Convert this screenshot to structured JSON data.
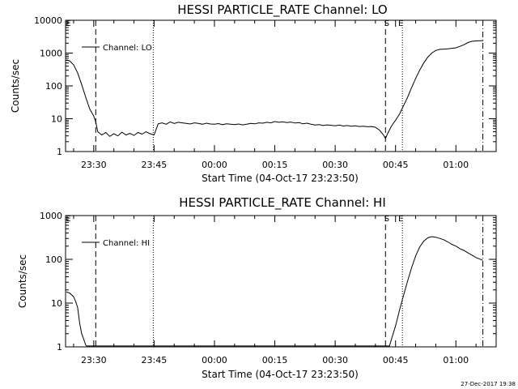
{
  "footer": {
    "date": "27-Dec-2017 19:38"
  },
  "chart_data": [
    {
      "type": "line",
      "title": "HESSI PARTICLE_RATE Channel: LO",
      "xlabel": "Start Time (04-Oct-17 23:23:50)",
      "ylabel": "Counts/sec",
      "yscale": "log",
      "ylim": [
        1,
        10000
      ],
      "xlim_minutes": [
        -7,
        100
      ],
      "x_ticks": [
        {
          "label": "23:30",
          "t": 0
        },
        {
          "label": "23:45",
          "t": 15
        },
        {
          "label": "00:00",
          "t": 30
        },
        {
          "label": "00:15",
          "t": 45
        },
        {
          "label": "00:30",
          "t": 60
        },
        {
          "label": "00:45",
          "t": 75
        },
        {
          "label": "01:00",
          "t": 90
        }
      ],
      "y_ticks": [
        {
          "label": "1",
          "v": 1
        },
        {
          "label": "10",
          "v": 10
        },
        {
          "label": "100",
          "v": 100
        },
        {
          "label": "1000",
          "v": 1000
        },
        {
          "label": "10000",
          "v": 10000
        }
      ],
      "legend": "Channel: LO",
      "markers": [
        {
          "label": "E",
          "t": -6.3
        },
        {
          "label": "S",
          "t": 72.8
        },
        {
          "label": "E",
          "t": 76.3
        }
      ],
      "vlines": [
        {
          "t": 0.5,
          "style": "dashed"
        },
        {
          "t": 14.8,
          "style": "dotted"
        },
        {
          "t": 72.5,
          "style": "dashed"
        },
        {
          "t": 76.7,
          "style": "dotted"
        },
        {
          "t": 96.7,
          "style": "dashdot"
        }
      ],
      "series": [
        {
          "points": [
            [
              -6.8,
              620
            ],
            [
              -6,
              580
            ],
            [
              -5,
              440
            ],
            [
              -4,
              250
            ],
            [
              -3,
              110
            ],
            [
              -2,
              45
            ],
            [
              -1,
              20
            ],
            [
              0,
              12
            ],
            [
              0.5,
              8
            ],
            [
              1,
              4
            ],
            [
              2,
              3.2
            ],
            [
              3,
              3.8
            ],
            [
              4,
              2.9
            ],
            [
              5,
              3.5
            ],
            [
              6,
              3
            ],
            [
              7,
              3.9
            ],
            [
              8,
              3.2
            ],
            [
              9,
              3.6
            ],
            [
              10,
              3.1
            ],
            [
              11,
              3.8
            ],
            [
              12,
              3.4
            ],
            [
              13,
              4
            ],
            [
              14,
              3.5
            ],
            [
              15,
              3.2
            ],
            [
              16,
              7
            ],
            [
              17,
              7.5
            ],
            [
              18,
              6.8
            ],
            [
              19,
              8
            ],
            [
              20,
              7.2
            ],
            [
              21,
              7.8
            ],
            [
              22,
              7.5
            ],
            [
              23,
              7.2
            ],
            [
              24,
              6.9
            ],
            [
              25,
              7.5
            ],
            [
              26,
              7.2
            ],
            [
              27,
              6.8
            ],
            [
              28,
              7.3
            ],
            [
              29,
              6.9
            ],
            [
              30,
              6.8
            ],
            [
              31,
              7.1
            ],
            [
              32,
              6.6
            ],
            [
              33,
              7
            ],
            [
              34,
              6.8
            ],
            [
              35,
              6.6
            ],
            [
              36,
              6.9
            ],
            [
              37,
              6.5
            ],
            [
              38,
              6.8
            ],
            [
              39,
              7.2
            ],
            [
              40,
              7
            ],
            [
              41,
              7.5
            ],
            [
              42,
              7.3
            ],
            [
              43,
              7.8
            ],
            [
              44,
              7.5
            ],
            [
              45,
              8.2
            ],
            [
              46,
              7.8
            ],
            [
              47,
              8
            ],
            [
              48,
              7.6
            ],
            [
              49,
              7.9
            ],
            [
              50,
              7.4
            ],
            [
              51,
              7.6
            ],
            [
              52,
              7
            ],
            [
              53,
              7.3
            ],
            [
              54,
              6.8
            ],
            [
              55,
              6.4
            ],
            [
              56,
              6.6
            ],
            [
              57,
              6.2
            ],
            [
              58,
              6.5
            ],
            [
              59,
              6.3
            ],
            [
              60,
              6.1
            ],
            [
              61,
              6.4
            ],
            [
              62,
              6
            ],
            [
              63,
              6.2
            ],
            [
              64,
              5.9
            ],
            [
              65,
              6.1
            ],
            [
              66,
              5.8
            ],
            [
              67,
              5.9
            ],
            [
              68,
              5.7
            ],
            [
              69,
              5.8
            ],
            [
              70,
              5.5
            ],
            [
              71,
              4.5
            ],
            [
              72,
              3.2
            ],
            [
              72.5,
              2.5
            ],
            [
              73,
              3.5
            ],
            [
              74,
              6
            ],
            [
              75,
              9
            ],
            [
              76,
              14
            ],
            [
              77,
              25
            ],
            [
              78,
              45
            ],
            [
              79,
              90
            ],
            [
              80,
              170
            ],
            [
              81,
              300
            ],
            [
              82,
              500
            ],
            [
              83,
              750
            ],
            [
              84,
              1000
            ],
            [
              85,
              1200
            ],
            [
              86,
              1300
            ],
            [
              87,
              1320
            ],
            [
              88,
              1350
            ],
            [
              89,
              1400
            ],
            [
              90,
              1450
            ],
            [
              91,
              1600
            ],
            [
              92,
              1800
            ],
            [
              93,
              2100
            ],
            [
              94,
              2300
            ],
            [
              95,
              2350
            ],
            [
              96.7,
              2400
            ]
          ]
        }
      ]
    },
    {
      "type": "line",
      "title": "HESSI PARTICLE_RATE Channel: HI",
      "xlabel": "Start Time (04-Oct-17 23:23:50)",
      "ylabel": "Counts/sec",
      "yscale": "log",
      "ylim": [
        1,
        1000
      ],
      "xlim_minutes": [
        -7,
        100
      ],
      "x_ticks": [
        {
          "label": "23:30",
          "t": 0
        },
        {
          "label": "23:45",
          "t": 15
        },
        {
          "label": "00:00",
          "t": 30
        },
        {
          "label": "00:15",
          "t": 45
        },
        {
          "label": "00:30",
          "t": 60
        },
        {
          "label": "00:45",
          "t": 75
        },
        {
          "label": "01:00",
          "t": 90
        }
      ],
      "y_ticks": [
        {
          "label": "1",
          "v": 1
        },
        {
          "label": "10",
          "v": 10
        },
        {
          "label": "100",
          "v": 100
        },
        {
          "label": "1000",
          "v": 1000
        }
      ],
      "legend": "Channel: HI",
      "markers": [
        {
          "label": "E",
          "t": -6.3
        },
        {
          "label": "S",
          "t": 72.8
        },
        {
          "label": "E",
          "t": 76.3
        }
      ],
      "vlines": [
        {
          "t": 0.5,
          "style": "dashed"
        },
        {
          "t": 14.8,
          "style": "dotted"
        },
        {
          "t": 72.5,
          "style": "dashed"
        },
        {
          "t": 76.7,
          "style": "dotted"
        },
        {
          "t": 96.7,
          "style": "dashdot"
        }
      ],
      "series": [
        {
          "points": [
            [
              -6.8,
              18
            ],
            [
              -6,
              17
            ],
            [
              -5,
              14
            ],
            [
              -4.5,
              11
            ],
            [
              -4,
              8
            ],
            [
              -3.5,
              3.5
            ],
            [
              -3,
              2
            ],
            [
              -2.5,
              1.5
            ],
            [
              -2,
              1.1
            ],
            [
              -1.8,
              1.05
            ],
            [
              73.5,
              1.05
            ],
            [
              74,
              1.5
            ],
            [
              75,
              3
            ],
            [
              76,
              7
            ],
            [
              77,
              15
            ],
            [
              78,
              32
            ],
            [
              79,
              65
            ],
            [
              80,
              120
            ],
            [
              81,
              190
            ],
            [
              82,
              260
            ],
            [
              83,
              310
            ],
            [
              84,
              330
            ],
            [
              85,
              320
            ],
            [
              86,
              300
            ],
            [
              87,
              280
            ],
            [
              88,
              250
            ],
            [
              89,
              220
            ],
            [
              90,
              200
            ],
            [
              91,
              175
            ],
            [
              92,
              160
            ],
            [
              93,
              140
            ],
            [
              94,
              125
            ],
            [
              95,
              110
            ],
            [
              96.7,
              95
            ]
          ]
        }
      ]
    }
  ]
}
